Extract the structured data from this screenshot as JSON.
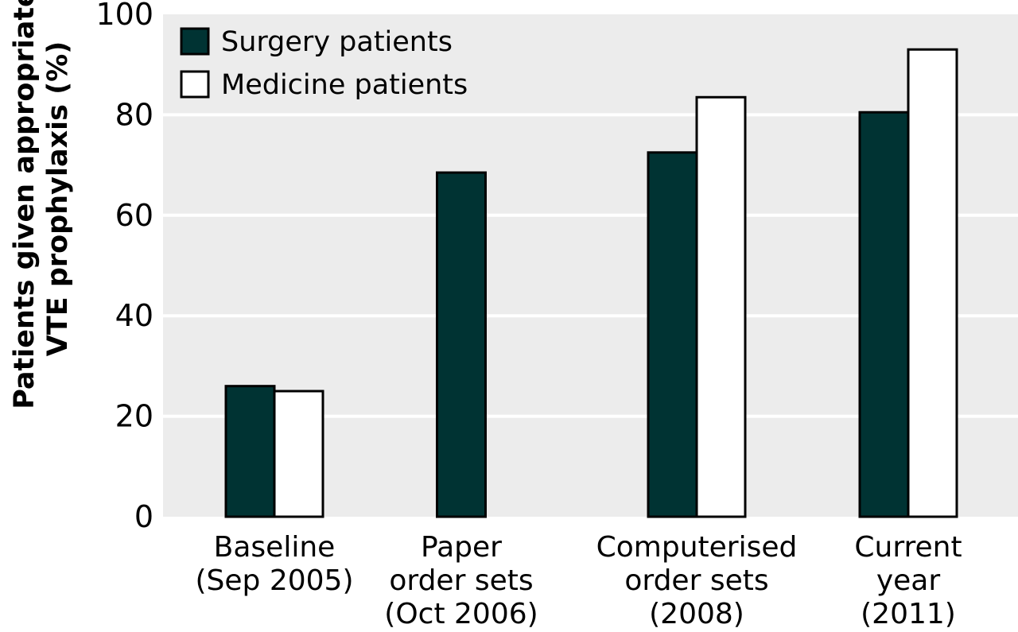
{
  "chart_data": {
    "type": "bar",
    "title": "",
    "xlabel": "",
    "ylabel_lines": [
      "Patients given appropriate",
      "VTE prophylaxis (%)"
    ],
    "ylim": [
      0,
      100
    ],
    "yticks": [
      "0",
      "20",
      "40",
      "60",
      "80",
      "100"
    ],
    "grid": true,
    "legend_position": "top-left",
    "categories": [
      [
        "Baseline",
        "(Sep 2005)"
      ],
      [
        "Paper",
        "order sets",
        "(Oct 2006)"
      ],
      [
        "Computerised",
        "order sets",
        "(2008)"
      ],
      [
        "Current",
        "year",
        "(2011)"
      ]
    ],
    "series": [
      {
        "name": "Surgery patients",
        "color": "#003333",
        "values": [
          26,
          68.5,
          72.5,
          80.5
        ]
      },
      {
        "name": "Medicine patients",
        "color": "#ffffff",
        "values": [
          25,
          null,
          83.5,
          93
        ]
      }
    ],
    "plot_background": "#ececec",
    "gridline_color": "#ffffff"
  }
}
